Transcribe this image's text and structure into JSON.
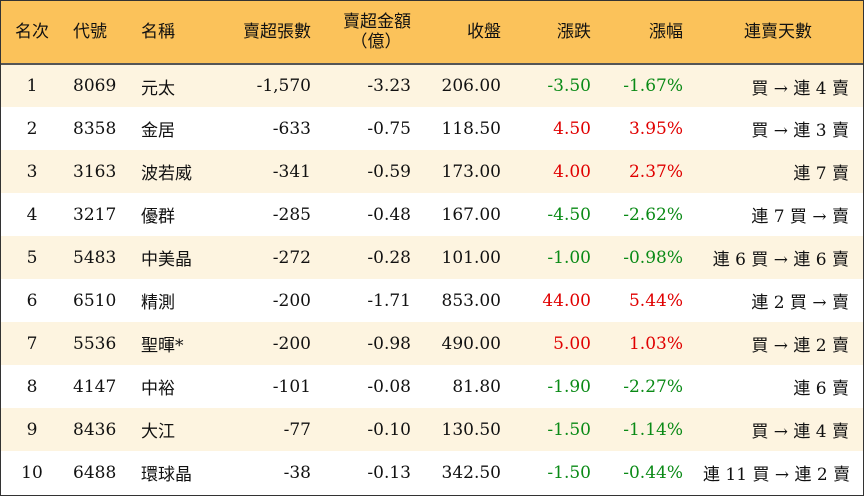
{
  "colors": {
    "header_bg": "#fbc25a",
    "stripe_bg": "#fdf4e0",
    "up": "#e00000",
    "down": "#0a8a16"
  },
  "headers": {
    "rank": "名次",
    "code": "代號",
    "name": "名稱",
    "net_sell_lots": "賣超張數",
    "net_sell_amount_line1": "賣超金額",
    "net_sell_amount_line2": "（億）",
    "close": "收盤",
    "change": "漲跌",
    "change_pct": "漲幅",
    "streak": "連賣天數"
  },
  "rows": [
    {
      "rank": "1",
      "code": "8069",
      "name": "元太",
      "net_sell_lots": "-1,570",
      "net_sell_amount": "-3.23",
      "close": "206.00",
      "change": "-3.50",
      "change_pct": "-1.67%",
      "direction": "down",
      "streak": "買 → 連 4 賣"
    },
    {
      "rank": "2",
      "code": "8358",
      "name": "金居",
      "net_sell_lots": "-633",
      "net_sell_amount": "-0.75",
      "close": "118.50",
      "change": "4.50",
      "change_pct": "3.95%",
      "direction": "up",
      "streak": "買 → 連 3 賣"
    },
    {
      "rank": "3",
      "code": "3163",
      "name": "波若威",
      "net_sell_lots": "-341",
      "net_sell_amount": "-0.59",
      "close": "173.00",
      "change": "4.00",
      "change_pct": "2.37%",
      "direction": "up",
      "streak": "連 7 賣"
    },
    {
      "rank": "4",
      "code": "3217",
      "name": "優群",
      "net_sell_lots": "-285",
      "net_sell_amount": "-0.48",
      "close": "167.00",
      "change": "-4.50",
      "change_pct": "-2.62%",
      "direction": "down",
      "streak": "連 7 買 → 賣"
    },
    {
      "rank": "5",
      "code": "5483",
      "name": "中美晶",
      "net_sell_lots": "-272",
      "net_sell_amount": "-0.28",
      "close": "101.00",
      "change": "-1.00",
      "change_pct": "-0.98%",
      "direction": "down",
      "streak": "連 6 買 → 連 6 賣"
    },
    {
      "rank": "6",
      "code": "6510",
      "name": "精測",
      "net_sell_lots": "-200",
      "net_sell_amount": "-1.71",
      "close": "853.00",
      "change": "44.00",
      "change_pct": "5.44%",
      "direction": "up",
      "streak": "連 2 買 → 賣"
    },
    {
      "rank": "7",
      "code": "5536",
      "name": "聖暉*",
      "net_sell_lots": "-200",
      "net_sell_amount": "-0.98",
      "close": "490.00",
      "change": "5.00",
      "change_pct": "1.03%",
      "direction": "up",
      "streak": "買 → 連 2 賣"
    },
    {
      "rank": "8",
      "code": "4147",
      "name": "中裕",
      "net_sell_lots": "-101",
      "net_sell_amount": "-0.08",
      "close": "81.80",
      "change": "-1.90",
      "change_pct": "-2.27%",
      "direction": "down",
      "streak": "連 6 賣"
    },
    {
      "rank": "9",
      "code": "8436",
      "name": "大江",
      "net_sell_lots": "-77",
      "net_sell_amount": "-0.10",
      "close": "130.50",
      "change": "-1.50",
      "change_pct": "-1.14%",
      "direction": "down",
      "streak": "買 → 連 4 賣"
    },
    {
      "rank": "10",
      "code": "6488",
      "name": "環球晶",
      "net_sell_lots": "-38",
      "net_sell_amount": "-0.13",
      "close": "342.50",
      "change": "-1.50",
      "change_pct": "-0.44%",
      "direction": "down",
      "streak": "連 11 買 → 連 2 賣"
    }
  ]
}
